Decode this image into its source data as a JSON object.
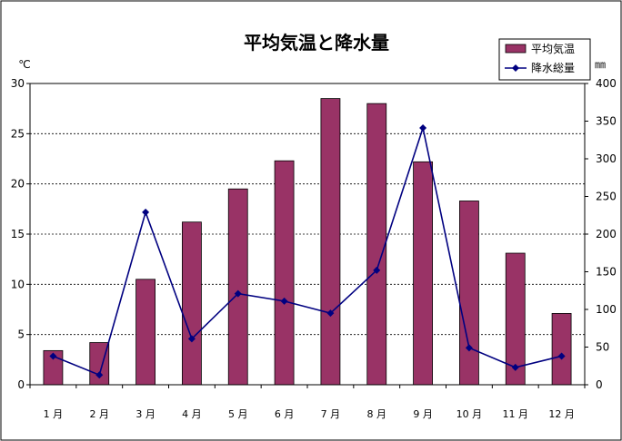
{
  "chart_data": {
    "type": "bar",
    "title": "平均気温と降水量",
    "categories": [
      "1 月",
      "2 月",
      "3 月",
      "4 月",
      "5 月",
      "6 月",
      "7 月",
      "8 月",
      "9 月",
      "10 月",
      "11 月",
      "12 月"
    ],
    "left_axis": {
      "unit": "℃",
      "ylim": [
        0,
        30
      ],
      "ticks": [
        "0",
        "5",
        "10",
        "15",
        "20",
        "25",
        "30"
      ]
    },
    "right_axis": {
      "unit": "㎜",
      "ylim": [
        0,
        400
      ],
      "ticks": [
        "0",
        "50",
        "100",
        "150",
        "200",
        "250",
        "300",
        "350",
        "400"
      ]
    },
    "series": [
      {
        "name": "平均気温",
        "kind": "bar",
        "axis": "left",
        "color": "#993366",
        "values": [
          3.4,
          4.2,
          10.5,
          16.2,
          19.5,
          22.3,
          28.5,
          28.0,
          22.2,
          18.3,
          13.1,
          7.1
        ]
      },
      {
        "name": "降水総量",
        "kind": "line",
        "axis": "right",
        "color": "#000080",
        "values": [
          38,
          13,
          229,
          61,
          121,
          111,
          95,
          152,
          341,
          49,
          23,
          38
        ]
      }
    ],
    "grid": true,
    "legend": "top-right"
  }
}
